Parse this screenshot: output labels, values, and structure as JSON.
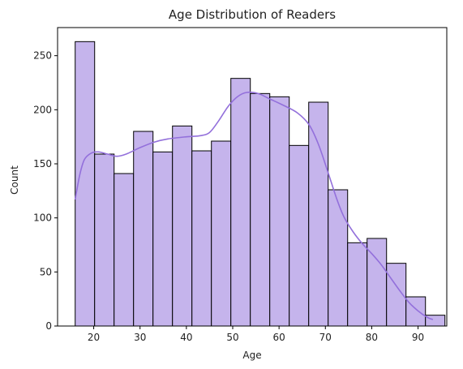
{
  "chart_data": {
    "type": "bar",
    "subtype": "histogram-with-kde",
    "title": "Age Distribution of Readers",
    "xlabel": "Age",
    "ylabel": "Count",
    "xlim": [
      12.2,
      96.2
    ],
    "ylim": [
      0,
      276
    ],
    "xticks": [
      20,
      30,
      40,
      50,
      60,
      70,
      80,
      90
    ],
    "yticks": [
      0,
      50,
      100,
      150,
      200,
      250
    ],
    "grid": false,
    "bar_color": "#c5b4ec",
    "edge_color": "#000000",
    "kde_color": "#9370db",
    "bins": [
      {
        "start": 16.0,
        "end": 20.2,
        "count": 263
      },
      {
        "start": 20.2,
        "end": 24.4,
        "count": 159
      },
      {
        "start": 24.4,
        "end": 28.6,
        "count": 141
      },
      {
        "start": 28.6,
        "end": 32.8,
        "count": 180
      },
      {
        "start": 32.8,
        "end": 37.0,
        "count": 161
      },
      {
        "start": 37.0,
        "end": 41.2,
        "count": 185
      },
      {
        "start": 41.2,
        "end": 45.4,
        "count": 162
      },
      {
        "start": 45.4,
        "end": 49.6,
        "count": 171
      },
      {
        "start": 49.6,
        "end": 53.8,
        "count": 229
      },
      {
        "start": 53.8,
        "end": 58.0,
        "count": 215
      },
      {
        "start": 58.0,
        "end": 62.2,
        "count": 212
      },
      {
        "start": 62.2,
        "end": 66.4,
        "count": 167
      },
      {
        "start": 66.4,
        "end": 70.6,
        "count": 207
      },
      {
        "start": 70.6,
        "end": 74.8,
        "count": 126
      },
      {
        "start": 74.8,
        "end": 79.0,
        "count": 77
      },
      {
        "start": 79.0,
        "end": 83.2,
        "count": 81
      },
      {
        "start": 83.2,
        "end": 87.4,
        "count": 58
      },
      {
        "start": 87.4,
        "end": 91.6,
        "count": 27
      },
      {
        "start": 91.6,
        "end": 95.8,
        "count": 10
      }
    ],
    "kde": [
      {
        "x": 16.0,
        "y": 117
      },
      {
        "x": 17.0,
        "y": 140
      },
      {
        "x": 18.0,
        "y": 154
      },
      {
        "x": 19.5,
        "y": 160
      },
      {
        "x": 21.0,
        "y": 161
      },
      {
        "x": 23.0,
        "y": 159
      },
      {
        "x": 25.0,
        "y": 157
      },
      {
        "x": 27.0,
        "y": 159
      },
      {
        "x": 30.0,
        "y": 165
      },
      {
        "x": 33.0,
        "y": 170
      },
      {
        "x": 36.0,
        "y": 173
      },
      {
        "x": 40.0,
        "y": 175
      },
      {
        "x": 43.0,
        "y": 176
      },
      {
        "x": 45.0,
        "y": 179
      },
      {
        "x": 47.0,
        "y": 190
      },
      {
        "x": 49.0,
        "y": 203
      },
      {
        "x": 51.0,
        "y": 212
      },
      {
        "x": 53.0,
        "y": 216
      },
      {
        "x": 55.5,
        "y": 215
      },
      {
        "x": 58.0,
        "y": 210
      },
      {
        "x": 61.0,
        "y": 204
      },
      {
        "x": 64.0,
        "y": 197
      },
      {
        "x": 66.5,
        "y": 186
      },
      {
        "x": 68.5,
        "y": 168
      },
      {
        "x": 70.5,
        "y": 143
      },
      {
        "x": 72.5,
        "y": 117
      },
      {
        "x": 74.0,
        "y": 101
      },
      {
        "x": 76.0,
        "y": 87
      },
      {
        "x": 78.0,
        "y": 76
      },
      {
        "x": 80.0,
        "y": 67
      },
      {
        "x": 82.0,
        "y": 57
      },
      {
        "x": 84.0,
        "y": 45
      },
      {
        "x": 86.0,
        "y": 33
      },
      {
        "x": 88.0,
        "y": 22
      },
      {
        "x": 90.0,
        "y": 14
      },
      {
        "x": 92.0,
        "y": 8
      },
      {
        "x": 93.2,
        "y": 6
      }
    ]
  }
}
